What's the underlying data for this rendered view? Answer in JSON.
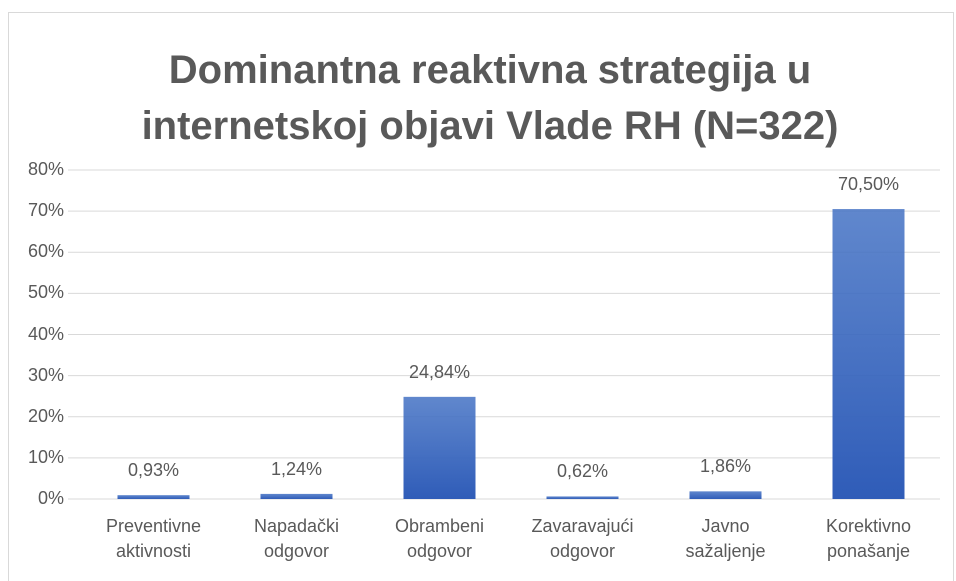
{
  "chart_data": {
    "type": "bar",
    "title": "Dominantna reaktivna strategija u internetskoj objavi Vlade RH (N=322)",
    "categories": [
      "Preventivne aktivnosti",
      "Napadački odgovor",
      "Obrambeni odgovor",
      "Zavaravajući odgovor",
      "Javno sažaljenje",
      "Korektivno ponašanje"
    ],
    "values": [
      0.93,
      1.24,
      24.84,
      0.62,
      1.86,
      70.5
    ],
    "value_labels": [
      "0,93%",
      "1,24%",
      "24,84%",
      "0,62%",
      "1,86%",
      "70,50%"
    ],
    "color": "#4472c4",
    "ylim": [
      0,
      80
    ],
    "yticks": [
      {
        "value": 0,
        "label": "0%"
      },
      {
        "value": 10,
        "label": "10%"
      },
      {
        "value": 20,
        "label": "20%"
      },
      {
        "value": 30,
        "label": "30%"
      },
      {
        "value": 40,
        "label": "40%"
      },
      {
        "value": 50,
        "label": "50%"
      },
      {
        "value": 60,
        "label": "60%"
      },
      {
        "value": 70,
        "label": "70%"
      },
      {
        "value": 80,
        "label": "80%"
      }
    ],
    "grid": true
  }
}
